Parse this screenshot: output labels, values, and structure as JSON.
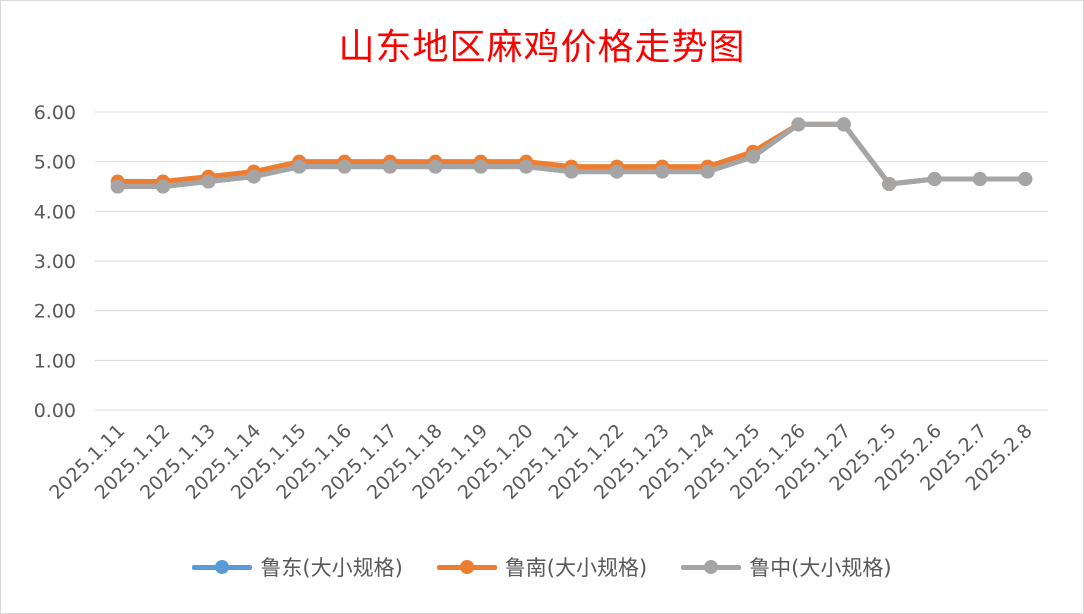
{
  "chart_data": {
    "type": "line",
    "title": "山东地区麻鸡价格走势图",
    "categories": [
      "2025.1.11",
      "2025.1.12",
      "2025.1.13",
      "2025.1.14",
      "2025.1.15",
      "2025.1.16",
      "2025.1.17",
      "2025.1.18",
      "2025.1.19",
      "2025.1.20",
      "2025.1.21",
      "2025.1.22",
      "2025.1.23",
      "2025.1.24",
      "2025.1.25",
      "2025.1.26",
      "2025.1.27",
      "2025.2.5",
      "2025.2.6",
      "2025.2.7",
      "2025.2.8"
    ],
    "ylim": [
      0,
      6
    ],
    "yticks": [
      "0.00",
      "1.00",
      "2.00",
      "3.00",
      "4.00",
      "5.00",
      "6.00"
    ],
    "grid": true,
    "legend_position": "bottom",
    "series": [
      {
        "name": "鲁东(大小规格)",
        "color": "#5b9bd5",
        "values": [
          4.5,
          4.5,
          4.6,
          4.7,
          4.9,
          4.9,
          4.9,
          4.9,
          4.9,
          4.9,
          4.8,
          4.8,
          4.8,
          4.8,
          5.1,
          5.75,
          5.75,
          4.55,
          4.65,
          4.65,
          4.65
        ]
      },
      {
        "name": "鲁南(大小规格)",
        "color": "#ed7d31",
        "values": [
          4.6,
          4.6,
          4.7,
          4.8,
          5.0,
          5.0,
          5.0,
          5.0,
          5.0,
          5.0,
          4.9,
          4.9,
          4.9,
          4.9,
          5.2,
          5.75,
          5.75,
          4.55,
          4.65,
          4.65,
          4.65
        ]
      },
      {
        "name": "鲁中(大小规格)",
        "color": "#a5a5a5",
        "values": [
          4.5,
          4.5,
          4.6,
          4.7,
          4.9,
          4.9,
          4.9,
          4.9,
          4.9,
          4.9,
          4.8,
          4.8,
          4.8,
          4.8,
          5.1,
          5.75,
          5.75,
          4.55,
          4.65,
          4.65,
          4.65
        ]
      }
    ]
  }
}
